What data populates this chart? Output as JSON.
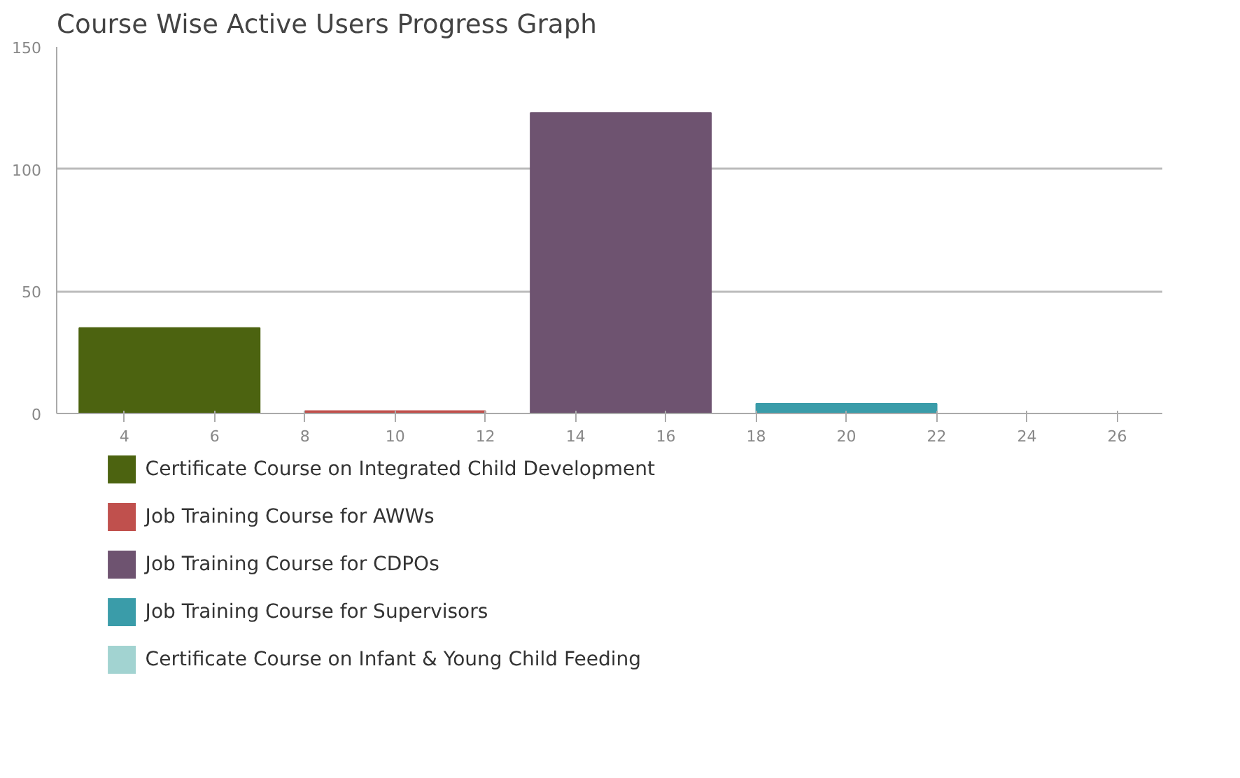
{
  "chart_data": {
    "type": "bar",
    "title": "Course Wise Active Users Progress Graph",
    "series": [
      {
        "name": "Certificate Course on Integrated Child Development",
        "color": "#4c6310",
        "x": [
          5
        ],
        "values": [
          35
        ]
      },
      {
        "name": "Job Training Course for AWWs",
        "color": "#c0504d",
        "x": [
          10
        ],
        "values": [
          1
        ]
      },
      {
        "name": "Job Training Course for CDPOs",
        "color": "#6e5370",
        "x": [
          15
        ],
        "values": [
          123
        ]
      },
      {
        "name": "Job Training Course for Supervisors",
        "color": "#3a9ca9",
        "x": [
          20
        ],
        "values": [
          4
        ]
      },
      {
        "name": "Certificate Course on Infant & Young Child Feeding",
        "color": "#a2d3d1",
        "x": [
          25
        ],
        "values": [
          0
        ]
      }
    ],
    "xlim": [
      2.5,
      27
    ],
    "xticks": [
      4,
      6,
      8,
      10,
      12,
      14,
      16,
      18,
      20,
      22,
      24,
      26
    ],
    "ylim": [
      0,
      150
    ],
    "yticks": [
      0,
      50,
      100,
      150
    ],
    "grid": "y",
    "legend": "bottom"
  }
}
